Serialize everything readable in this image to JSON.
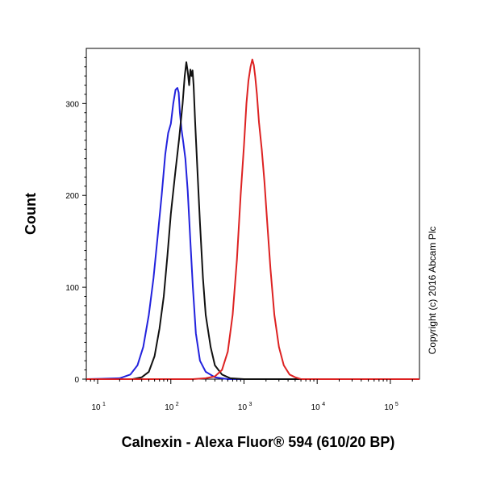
{
  "chart_data": {
    "type": "line",
    "title": "",
    "xlabel": "Calnexin - Alexa Fluor® 594 (610/20 BP)",
    "ylabel": "Count",
    "xscale": "log",
    "xlim": [
      7,
      250000
    ],
    "ylim": [
      0,
      360
    ],
    "yticks": [
      0,
      100,
      200,
      300
    ],
    "yticklabels": [
      "0",
      "100",
      "200",
      "300"
    ],
    "xticks": [
      10,
      100,
      1000,
      10000,
      100000
    ],
    "xticklabels": [
      {
        "base": "10",
        "exp": "1"
      },
      {
        "base": "10",
        "exp": "2"
      },
      {
        "base": "10",
        "exp": "3"
      },
      {
        "base": "10",
        "exp": "4"
      },
      {
        "base": "10",
        "exp": "5"
      }
    ],
    "grid": false,
    "legend": "none",
    "annotation": "Copyright (c) 2016 Abcam Plc",
    "series": [
      {
        "color": "#2222dd",
        "x": [
          7,
          20,
          28,
          35,
          42,
          50,
          58,
          66,
          75,
          84,
          92,
          100,
          108,
          116,
          123,
          128,
          133,
          140,
          148,
          158,
          170,
          185,
          200,
          220,
          250,
          300,
          400,
          600,
          1000,
          250000
        ],
        "y": [
          0,
          1,
          5,
          15,
          35,
          70,
          110,
          155,
          200,
          245,
          268,
          278,
          300,
          315,
          317,
          312,
          290,
          272,
          258,
          240,
          205,
          150,
          100,
          50,
          20,
          8,
          2,
          0,
          0,
          0
        ]
      },
      {
        "color": "#111111",
        "x": [
          7,
          30,
          40,
          50,
          60,
          70,
          80,
          90,
          100,
          115,
          130,
          145,
          155,
          163,
          170,
          178,
          185,
          192,
          198,
          205,
          215,
          230,
          250,
          275,
          300,
          350,
          400,
          500,
          650,
          1000,
          250000
        ],
        "y": [
          0,
          0,
          2,
          8,
          25,
          55,
          90,
          135,
          180,
          225,
          262,
          300,
          330,
          345,
          335,
          320,
          337,
          330,
          336,
          320,
          280,
          230,
          170,
          110,
          70,
          35,
          15,
          5,
          1,
          0,
          0
        ]
      },
      {
        "color": "#dd2222",
        "x": [
          7,
          200,
          300,
          400,
          500,
          600,
          700,
          800,
          900,
          1000,
          1080,
          1150,
          1230,
          1300,
          1360,
          1420,
          1500,
          1600,
          1750,
          1900,
          2100,
          2300,
          2600,
          3000,
          3500,
          4200,
          5000,
          6000,
          250000
        ],
        "y": [
          0,
          0,
          1,
          3,
          10,
          30,
          70,
          130,
          200,
          255,
          300,
          325,
          340,
          348,
          342,
          330,
          310,
          280,
          250,
          215,
          165,
          120,
          70,
          35,
          15,
          5,
          2,
          0,
          0
        ]
      }
    ]
  }
}
